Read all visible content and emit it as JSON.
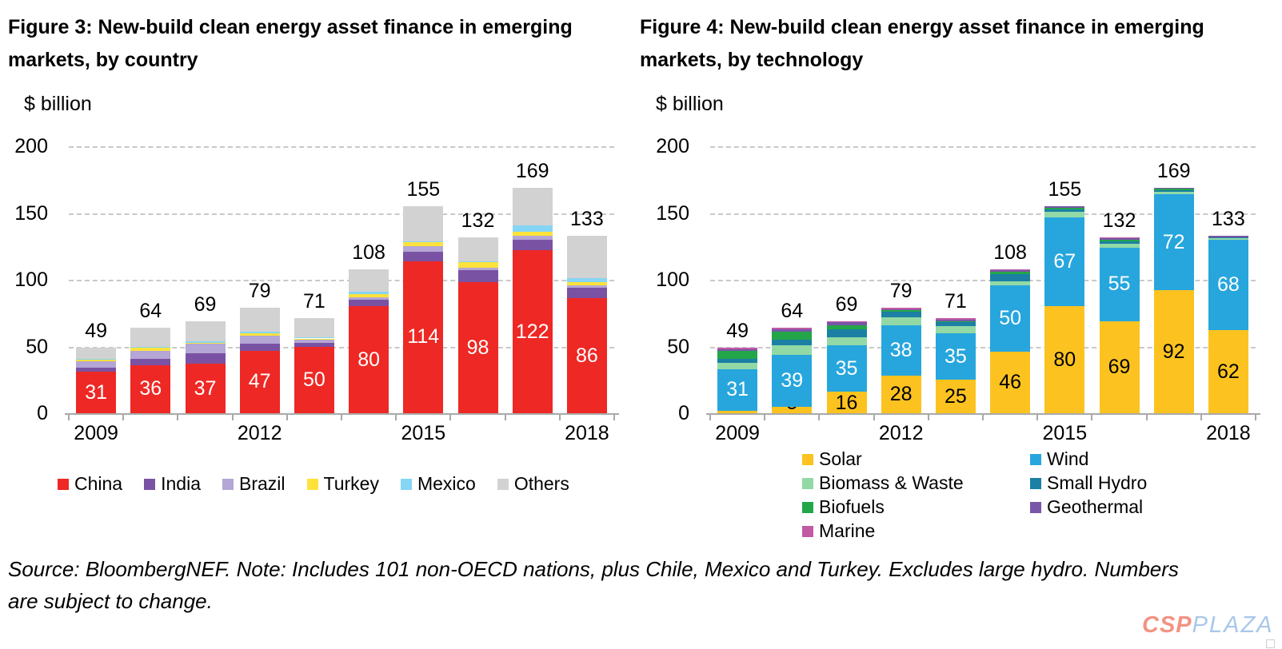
{
  "chart_data": [
    {
      "id": "fig3",
      "type": "bar",
      "stacked": true,
      "title": "Figure 3: New-build clean energy asset finance in emerging markets, by country",
      "title_lines": [
        "Figure 3: New-build clean energy asset finance in emerging",
        "markets, by country"
      ],
      "ylabel": "$ billion",
      "ylim": [
        0,
        200
      ],
      "yticks": [
        0,
        50,
        100,
        150,
        200
      ],
      "grid": "dashed-horizontal",
      "categories": [
        "2009",
        "2010",
        "2011",
        "2012",
        "2013",
        "2014",
        "2015",
        "2016",
        "2017",
        "2018"
      ],
      "xticks": [
        {
          "i": 0,
          "label": "2009"
        },
        {
          "i": 3,
          "label": "2012"
        },
        {
          "i": 6,
          "label": "2015"
        },
        {
          "i": 9,
          "label": "2018"
        }
      ],
      "totals": [
        49,
        64,
        69,
        79,
        71,
        108,
        155,
        132,
        169,
        133
      ],
      "series": [
        {
          "name": "China",
          "color": "#ee2824",
          "label_color": "#ffffff",
          "values": [
            31,
            36,
            37,
            47,
            50,
            80,
            114,
            98,
            122,
            86
          ]
        },
        {
          "name": "India",
          "color": "#7a52a3",
          "values": [
            3,
            5,
            8,
            5,
            3,
            5,
            7,
            9,
            8,
            8
          ]
        },
        {
          "name": "Brazil",
          "color": "#b4a6d5",
          "values": [
            5,
            6,
            7,
            6,
            2,
            2,
            4,
            2,
            3,
            2
          ]
        },
        {
          "name": "Turkey",
          "color": "#fde23b",
          "values": [
            1,
            2,
            1,
            2,
            1,
            2,
            3,
            4,
            3,
            2
          ]
        },
        {
          "name": "Mexico",
          "color": "#85d5f4",
          "values": [
            1,
            1,
            1,
            1,
            1,
            2,
            1,
            1,
            5,
            3
          ]
        },
        {
          "name": "Others",
          "color": "#d2d2d2",
          "values": [
            8,
            14,
            15,
            18,
            14,
            17,
            26,
            18,
            28,
            32
          ]
        }
      ],
      "legend": {
        "layout": "row",
        "position": "bottom"
      }
    },
    {
      "id": "fig4",
      "type": "bar",
      "stacked": true,
      "title": "Figure 4: New-build clean energy asset finance in emerging markets, by technology",
      "title_lines": [
        "Figure 4: New-build clean energy asset finance in emerging",
        "markets, by technology"
      ],
      "ylabel": "$ billion",
      "ylim": [
        0,
        200
      ],
      "yticks": [
        0,
        50,
        100,
        150,
        200
      ],
      "grid": "dashed-horizontal",
      "categories": [
        "2009",
        "2010",
        "2011",
        "2012",
        "2013",
        "2014",
        "2015",
        "2016",
        "2017",
        "2018"
      ],
      "xticks": [
        {
          "i": 0,
          "label": "2009"
        },
        {
          "i": 3,
          "label": "2012"
        },
        {
          "i": 6,
          "label": "2015"
        },
        {
          "i": 9,
          "label": "2018"
        }
      ],
      "totals": [
        49,
        64,
        69,
        79,
        71,
        108,
        155,
        132,
        169,
        133
      ],
      "series": [
        {
          "name": "Solar",
          "color": "#fcc320",
          "label_color": "#000000",
          "values": [
            2,
            5,
            16,
            28,
            25,
            46,
            80,
            69,
            92,
            62
          ]
        },
        {
          "name": "Wind",
          "color": "#27a6dd",
          "label_color": "#ffffff",
          "values": [
            31,
            39,
            35,
            38,
            35,
            50,
            67,
            55,
            72,
            68
          ]
        },
        {
          "name": "Biomass & Waste",
          "color": "#92d9a6",
          "values": [
            5,
            7,
            6,
            6,
            5,
            3,
            4,
            3,
            2,
            1
          ]
        },
        {
          "name": "Small Hydro",
          "color": "#1b80a4",
          "values": [
            3,
            4,
            6,
            4,
            3,
            5,
            2,
            2,
            1,
            1
          ]
        },
        {
          "name": "Biofuels",
          "color": "#23a649",
          "values": [
            6,
            6,
            3,
            1,
            1,
            2,
            1,
            1,
            1,
            0
          ]
        },
        {
          "name": "Geothermal",
          "color": "#7a56a8",
          "values": [
            1,
            2,
            2,
            1,
            1,
            1,
            1,
            1,
            1,
            1
          ]
        },
        {
          "name": "Marine",
          "color": "#c05ba4",
          "values": [
            1,
            1,
            1,
            1,
            1,
            1,
            0,
            1,
            0,
            0
          ]
        }
      ],
      "legend": {
        "layout": "columns",
        "position": "bottom",
        "columns": [
          [
            "Solar",
            "Biomass & Waste",
            "Biofuels",
            "Marine"
          ],
          [
            "Wind",
            "Small Hydro",
            "Geothermal"
          ]
        ]
      }
    }
  ],
  "footer": {
    "source_line1": "Source: BloombergNEF. Note: Includes 101 non-OECD nations, plus Chile, Mexico and Turkey. Excludes large hydro. Numbers",
    "source_line2": "are subject to change.",
    "logo_csp": "CSP",
    "logo_plaza": "PLAZA"
  }
}
